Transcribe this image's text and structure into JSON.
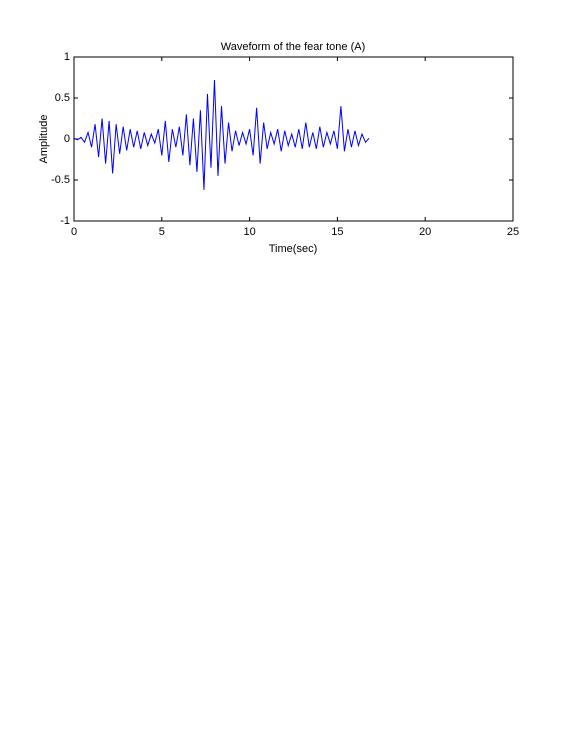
{
  "chart_data": {
    "type": "line",
    "title": "Waveform of the fear tone (A)",
    "xlabel": "Time(sec)",
    "ylabel": "Amplitude",
    "x": [
      0,
      0.2,
      0.4,
      0.6,
      0.8,
      1.0,
      1.2,
      1.4,
      1.6,
      1.8,
      2.0,
      2.2,
      2.4,
      2.6,
      2.8,
      3.0,
      3.2,
      3.4,
      3.6,
      3.8,
      4.0,
      4.2,
      4.4,
      4.6,
      4.8,
      5.0,
      5.2,
      5.4,
      5.6,
      5.8,
      6.0,
      6.2,
      6.4,
      6.6,
      6.8,
      7.0,
      7.2,
      7.4,
      7.6,
      7.8,
      8.0,
      8.2,
      8.4,
      8.6,
      8.8,
      9.0,
      9.2,
      9.4,
      9.6,
      9.8,
      10.0,
      10.2,
      10.4,
      10.6,
      10.8,
      11.0,
      11.2,
      11.4,
      11.6,
      11.8,
      12.0,
      12.2,
      12.4,
      12.6,
      12.8,
      13.0,
      13.2,
      13.4,
      13.6,
      13.8,
      14.0,
      14.2,
      14.4,
      14.6,
      14.8,
      15.0,
      15.2,
      15.4,
      15.6,
      15.8,
      16.0,
      16.2,
      16.4,
      16.6,
      16.8
    ],
    "values": [
      0.01,
      -0.01,
      0.02,
      -0.04,
      0.08,
      -0.1,
      0.18,
      -0.22,
      0.25,
      -0.3,
      0.22,
      -0.42,
      0.18,
      -0.18,
      0.15,
      -0.14,
      0.12,
      -0.1,
      0.1,
      -0.12,
      0.08,
      -0.08,
      0.06,
      -0.05,
      0.12,
      -0.2,
      0.22,
      -0.28,
      0.12,
      -0.1,
      0.15,
      -0.2,
      0.3,
      -0.32,
      0.25,
      -0.4,
      0.35,
      -0.62,
      0.55,
      -0.35,
      0.72,
      -0.45,
      0.4,
      -0.3,
      0.2,
      -0.15,
      0.1,
      -0.08,
      0.08,
      -0.06,
      0.12,
      -0.2,
      0.38,
      -0.3,
      0.2,
      -0.12,
      0.08,
      -0.06,
      0.12,
      -0.15,
      0.1,
      -0.08,
      0.06,
      -0.1,
      0.12,
      -0.12,
      0.2,
      -0.1,
      0.08,
      -0.12,
      0.15,
      -0.1,
      0.08,
      -0.06,
      0.1,
      -0.12,
      0.4,
      -0.15,
      0.12,
      -0.1,
      0.1,
      -0.08,
      0.06,
      -0.04,
      0.01
    ],
    "color": "#0000ff",
    "xlim": [
      0,
      25
    ],
    "xticks": [
      0,
      5,
      10,
      15,
      20,
      25
    ],
    "ylim": [
      -1,
      1
    ],
    "yticks": [
      -1,
      -0.5,
      0,
      0.5,
      1
    ],
    "grid": false
  }
}
